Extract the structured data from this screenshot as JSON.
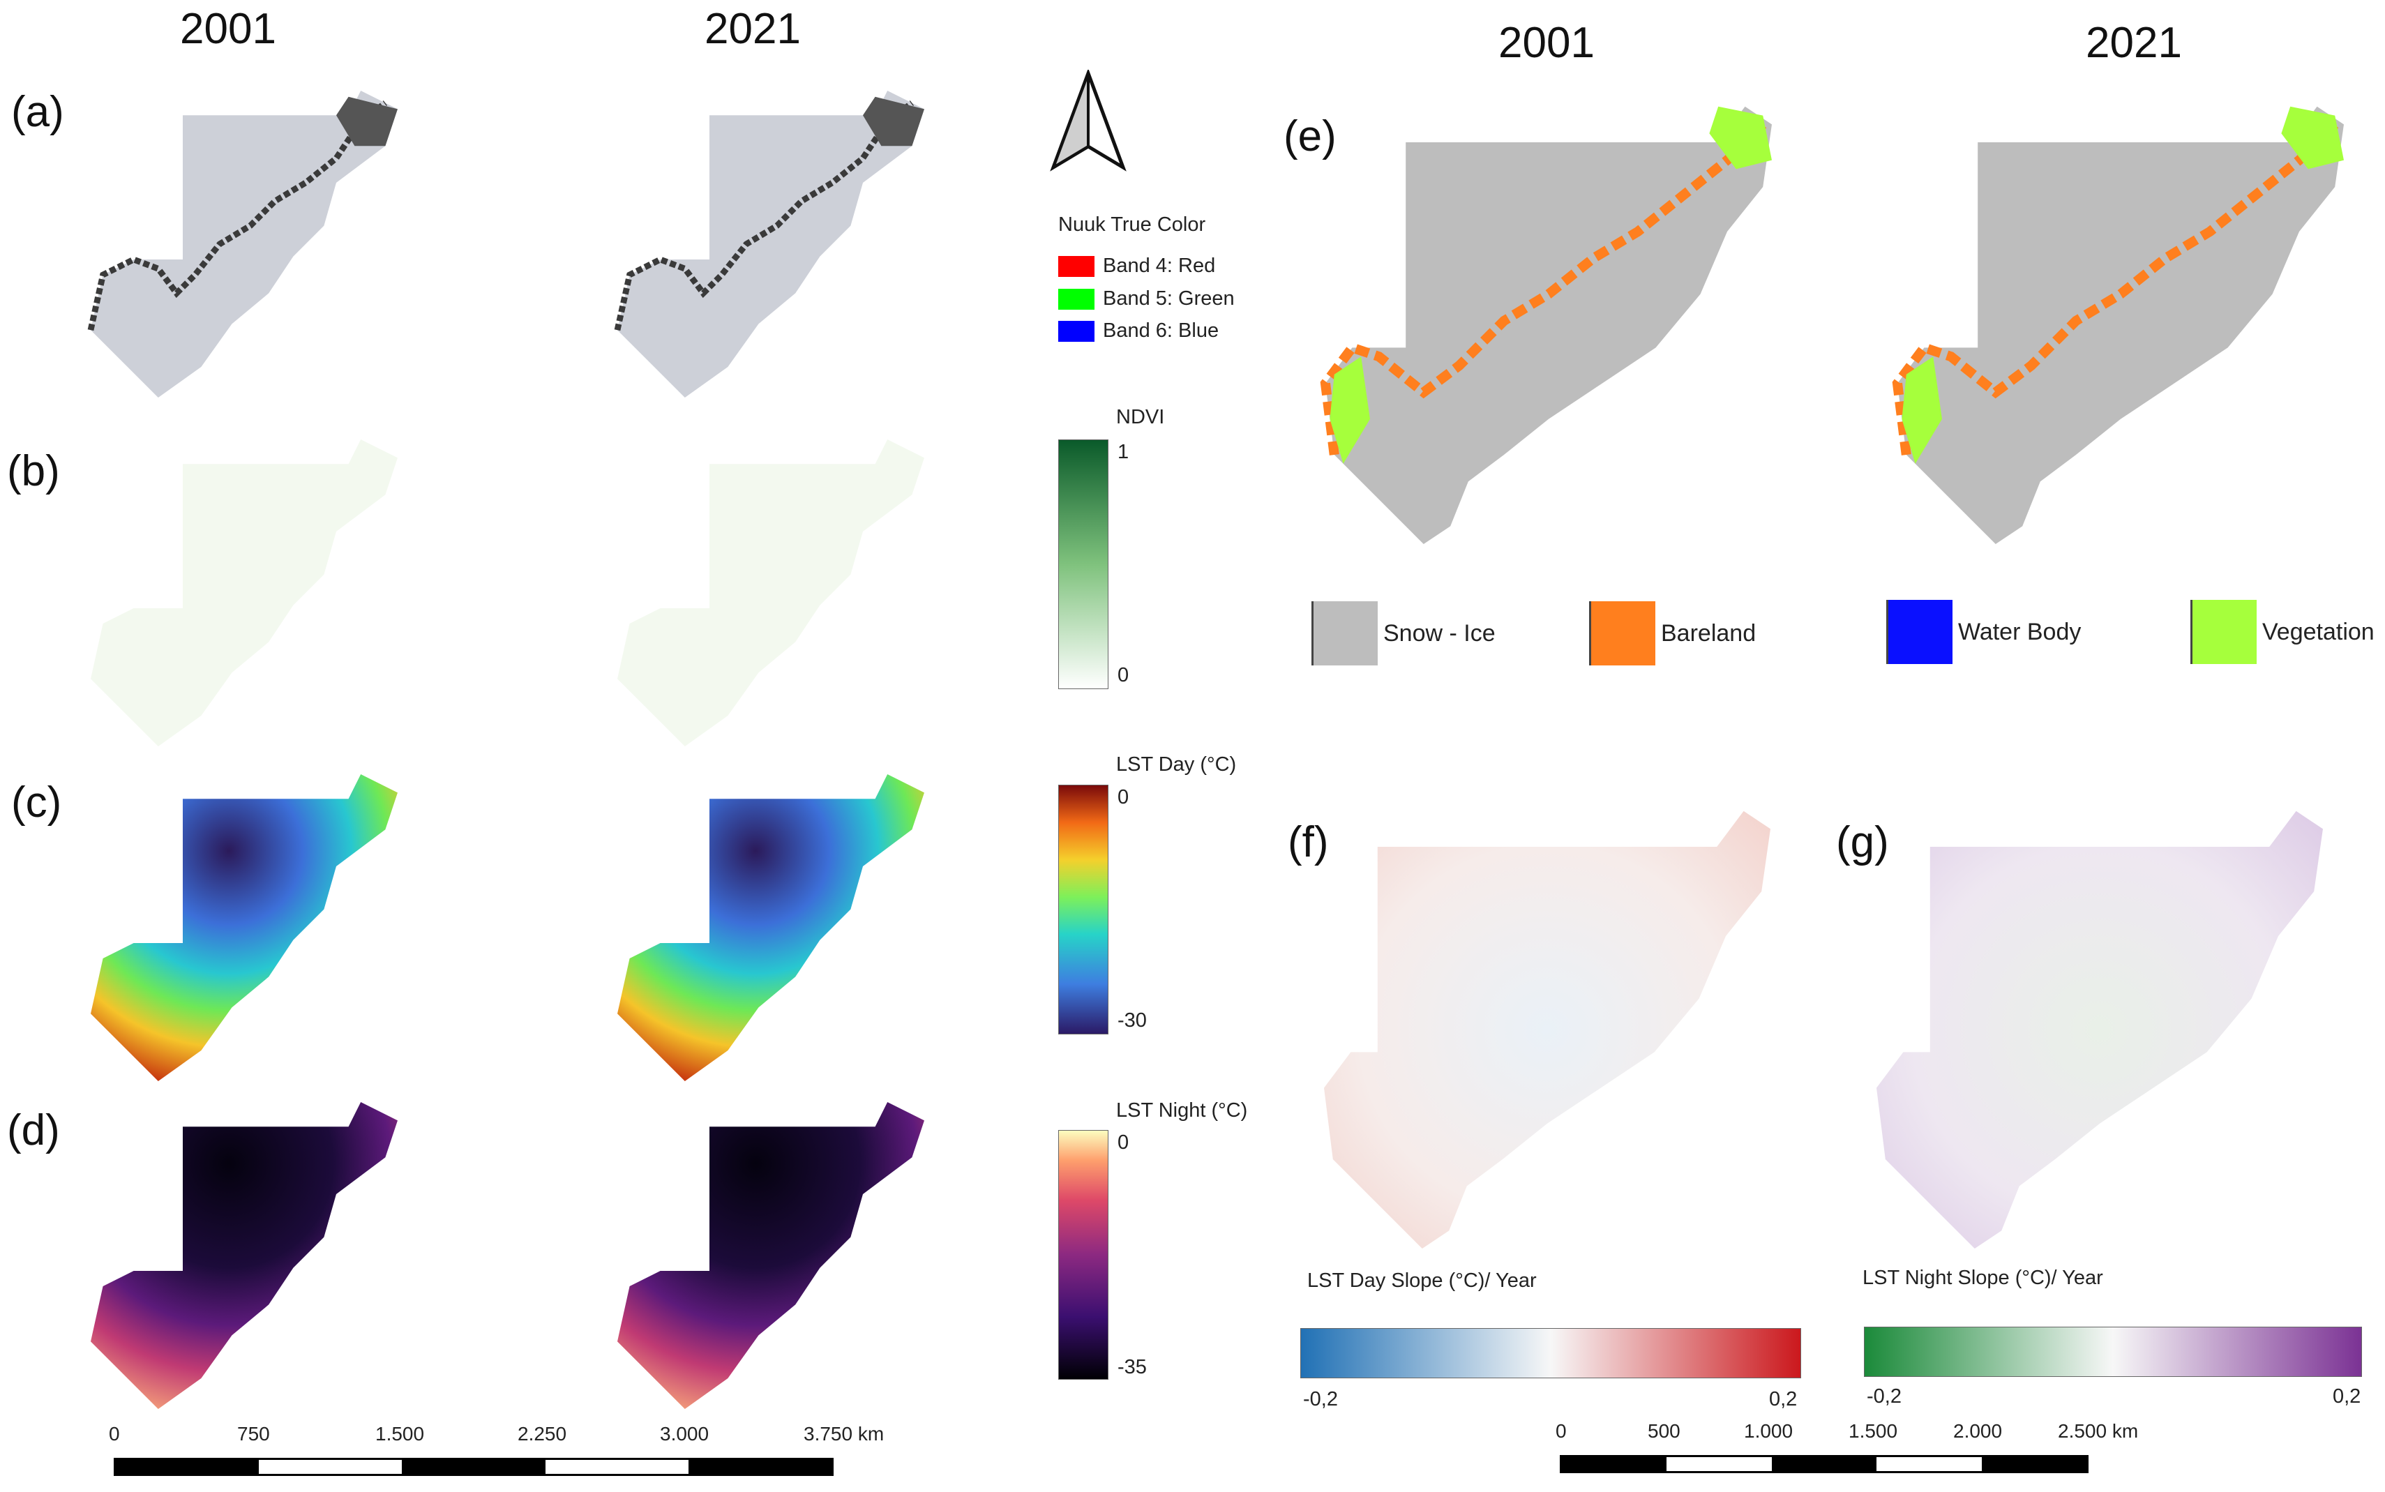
{
  "left": {
    "years": [
      "2001",
      "2021"
    ],
    "panels": [
      {
        "label": "(a)",
        "kind": "true-color"
      },
      {
        "label": "(b)",
        "kind": "ndvi"
      },
      {
        "label": "(c)",
        "kind": "lst-day"
      },
      {
        "label": "(d)",
        "kind": "lst-night"
      }
    ]
  },
  "right": {
    "years": [
      "2001",
      "2021"
    ],
    "panel_e": "(e)",
    "panel_f": "(f)",
    "panel_g": "(g)"
  },
  "legends": {
    "true_color": {
      "title": "Nuuk True Color",
      "bands": [
        {
          "label": "Band 4: Red",
          "color": "#ff0000"
        },
        {
          "label": "Band 5: Green",
          "color": "#00ff00"
        },
        {
          "label": "Band 6: Blue",
          "color": "#0000ff"
        }
      ]
    },
    "ndvi": {
      "title": "NDVI",
      "max": "1",
      "min": "0"
    },
    "lst_day": {
      "title": "LST Day (°C)",
      "max": "0",
      "min": "-30"
    },
    "lst_night": {
      "title": "LST Night (°C)",
      "max": "0",
      "min": "-35"
    },
    "land_cover": [
      {
        "label": "Snow - Ice",
        "color": "#bdbdbd"
      },
      {
        "label": "Bareland",
        "color": "#ff7f1e"
      },
      {
        "label": "Water Body",
        "color": "#0a10ff"
      },
      {
        "label": "Vegetation",
        "color": "#a6ff3c"
      }
    ],
    "lst_day_slope": {
      "title": "LST Day Slope (°C)/ Year",
      "min": "-0,2",
      "max": "0,2"
    },
    "lst_night_slope": {
      "title": "LST Night Slope (°C)/ Year",
      "min": "-0,2",
      "max": "0,2"
    }
  },
  "scale_left": {
    "ticks": [
      "0",
      "750",
      "1.500",
      "2.250",
      "3.000",
      "3.750 km"
    ]
  },
  "scale_right": {
    "ticks": [
      "0",
      "500",
      "1.000",
      "1.500",
      "2.000",
      "2.500 km"
    ]
  },
  "colors": {
    "snow": "#bdbdbd",
    "bare": "#ff7f1e",
    "veg": "#a6ff3c",
    "ice_tc": "#cdd0d8"
  }
}
